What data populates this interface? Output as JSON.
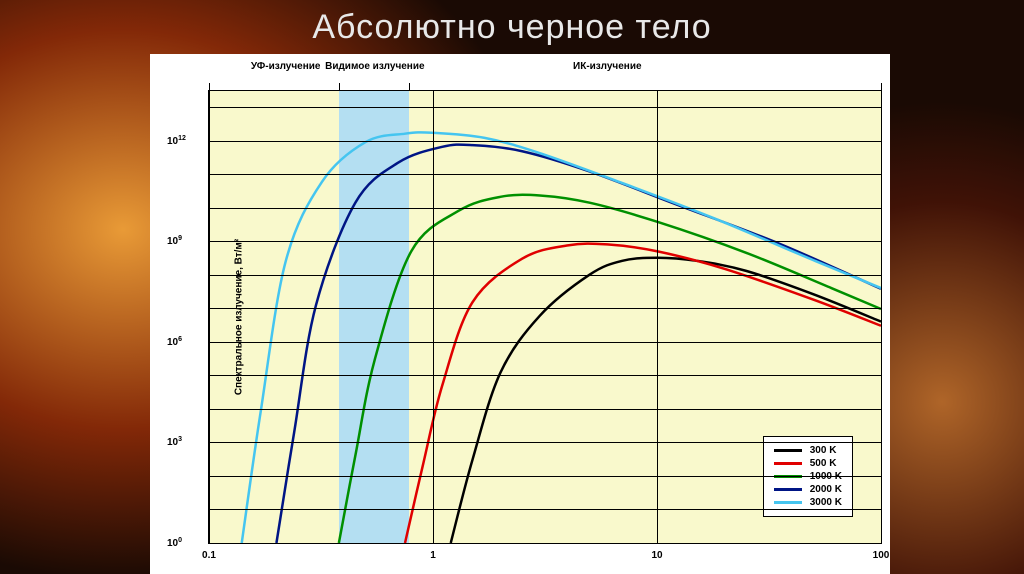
{
  "title": "Абсолютно черное тело",
  "chart": {
    "type": "line-loglog",
    "background_color": "#f9f9cc",
    "frame_color": "#000000",
    "visible_band_color": "#b4dff2",
    "visible_band_x": [
      0.38,
      0.78
    ],
    "top_labels": [
      {
        "text": "УФ-излучение",
        "x": 0.22
      },
      {
        "text": "Видимое излучение",
        "x": 0.55
      },
      {
        "text": "ИК-излучение",
        "x": 6
      }
    ],
    "ylabel": "Спектральное излучение, Вт/м²",
    "xlim": [
      0.1,
      100
    ],
    "ylim": [
      1,
      30000000000000.0
    ],
    "xticks": [
      0.1,
      1,
      10,
      100
    ],
    "xtick_labels": [
      "0.1",
      "1",
      "10",
      "100"
    ],
    "yticks": [
      1,
      1000,
      1000000,
      1000000000,
      1000000000000
    ],
    "ytick_labels": [
      "10<sup>0</sup>",
      "10<sup>3</sup>",
      "10<sup>6</sup>",
      "10<sup>9</sup>",
      "10<sup>12</sup>"
    ],
    "minor_h_per_decade": [
      2,
      3,
      4,
      5,
      6,
      7,
      8,
      9
    ],
    "line_width": 2.5,
    "series": [
      {
        "label": "300 K",
        "color": "#000000",
        "points": [
          [
            1.2,
            1
          ],
          [
            1.5,
            300.0
          ],
          [
            2,
            120000.0
          ],
          [
            3,
            6000000.0
          ],
          [
            5,
            100000000.0
          ],
          [
            7,
            260000000.0
          ],
          [
            10,
            320000000.0
          ],
          [
            15,
            260000000.0
          ],
          [
            25,
            130000000.0
          ],
          [
            50,
            26000000.0
          ],
          [
            100,
            4000000.0
          ]
        ]
      },
      {
        "label": "500 K",
        "color": "#e00000",
        "points": [
          [
            0.75,
            1
          ],
          [
            0.9,
            200.0
          ],
          [
            1.1,
            50000.0
          ],
          [
            1.5,
            15000000.0
          ],
          [
            2.5,
            300000000.0
          ],
          [
            4,
            750000000.0
          ],
          [
            6,
            800000000.0
          ],
          [
            10,
            500000000.0
          ],
          [
            20,
            150000000.0
          ],
          [
            50,
            18000000.0
          ],
          [
            100,
            3000000.0
          ]
        ]
      },
      {
        "label": "1000 K",
        "color": "#009000",
        "points": [
          [
            0.38,
            1
          ],
          [
            0.45,
            400.0
          ],
          [
            0.55,
            300000.0
          ],
          [
            0.8,
            500000000.0
          ],
          [
            1.3,
            8000000000.0
          ],
          [
            2,
            21000000000.0
          ],
          [
            3,
            23000000000.0
          ],
          [
            5,
            14000000000.0
          ],
          [
            10,
            3800000000.0
          ],
          [
            25,
            450000000.0
          ],
          [
            60,
            40000000.0
          ],
          [
            100,
            9500000.0
          ]
        ]
      },
      {
        "label": "2000 K",
        "color": "#001585",
        "points": [
          [
            0.2,
            1
          ],
          [
            0.24,
            2000.0
          ],
          [
            0.3,
            12000000.0
          ],
          [
            0.45,
            14000000000.0
          ],
          [
            0.7,
            220000000000.0
          ],
          [
            1.1,
            650000000000.0
          ],
          [
            1.5,
            730000000000.0
          ],
          [
            2.5,
            480000000000.0
          ],
          [
            5,
            120000000000.0
          ],
          [
            12,
            13000000000.0
          ],
          [
            35,
            850000000.0
          ],
          [
            100,
            38000000.0
          ]
        ]
      },
      {
        "label": "3000 K",
        "color": "#45c5f0",
        "points": [
          [
            0.14,
            1
          ],
          [
            0.17,
            8000.0
          ],
          [
            0.22,
            250000000.0
          ],
          [
            0.32,
            60000000000.0
          ],
          [
            0.5,
            900000000000.0
          ],
          [
            0.75,
            1600000000000.0
          ],
          [
            1,
            1700000000000.0
          ],
          [
            1.7,
            1200000000000.0
          ],
          [
            3,
            420000000000.0
          ],
          [
            7,
            54000000000.0
          ],
          [
            18,
            4800000000.0
          ],
          [
            50,
            270000000.0
          ],
          [
            100,
            40000000.0
          ]
        ]
      }
    ]
  }
}
